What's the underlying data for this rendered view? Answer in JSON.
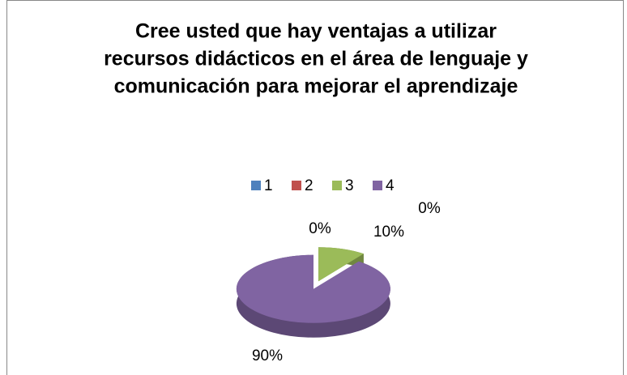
{
  "chart_data": {
    "type": "pie3d",
    "title": [
      "Cree usted que hay ventajas a utilizar",
      "recursos didácticos en el área de  lenguaje  y",
      "comunicación para mejorar el aprendizaje"
    ],
    "categories": [
      "1",
      "2",
      "3",
      "4"
    ],
    "values": [
      0,
      0,
      10,
      90
    ],
    "value_labels": [
      "0%",
      "0%",
      "10%",
      "90%"
    ],
    "colors": [
      "#4f81bd",
      "#c0504d",
      "#9bbb59",
      "#8064a2"
    ],
    "legend": "top"
  }
}
